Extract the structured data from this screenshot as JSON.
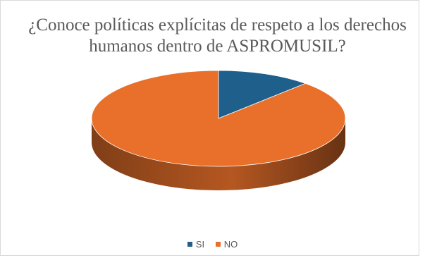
{
  "chart_data": {
    "type": "pie",
    "style": "3d",
    "title": "¿Conoce políticas explícitas de respeto a los derechos humanos dentro de ASPROMUSIL?",
    "slices": [
      {
        "label": "SI",
        "value": 12,
        "color": "#1f5f8b"
      },
      {
        "label": "NO",
        "value": 88,
        "color": "#e8702a"
      }
    ],
    "legend_position": "bottom"
  },
  "legend": {
    "items": [
      {
        "label": "SI",
        "color": "#1f5f8b"
      },
      {
        "label": "NO",
        "color": "#e8702a"
      }
    ]
  }
}
